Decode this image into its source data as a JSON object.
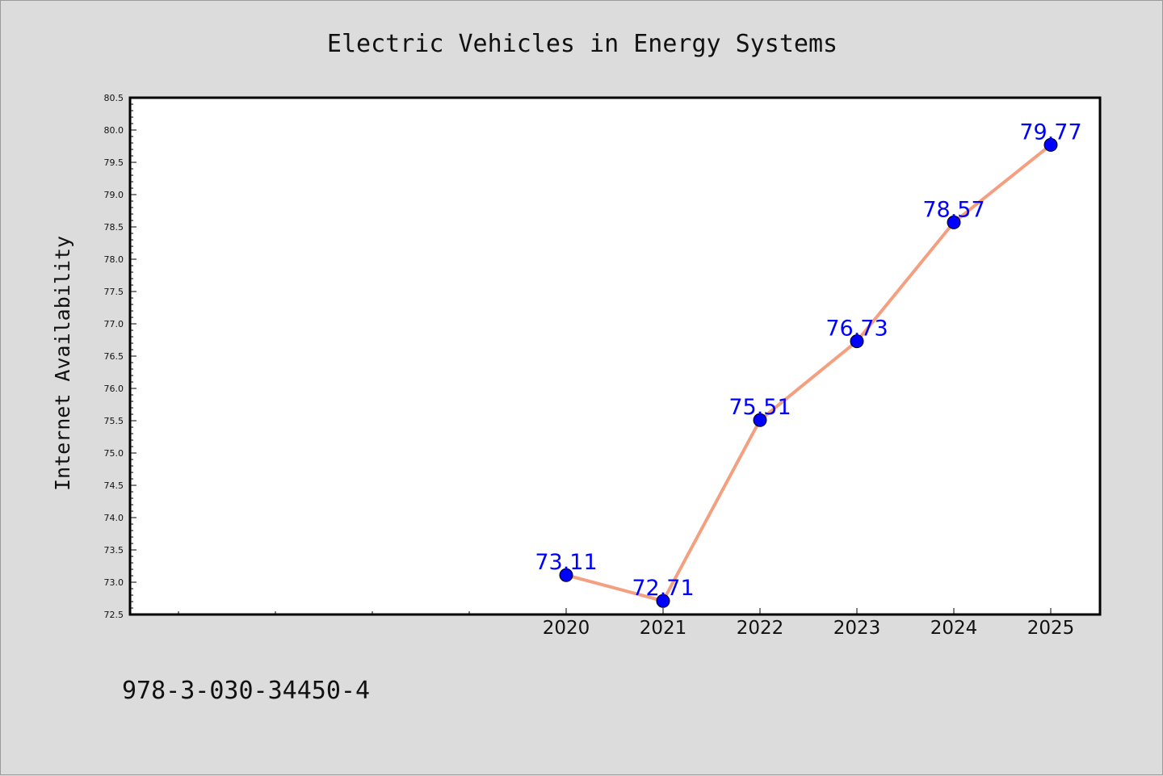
{
  "colors": {
    "background": "#dcdcdc",
    "plot_background": "#ffffff",
    "line": "#f4a080",
    "marker": "#0000ff",
    "label": "#0000ff"
  },
  "footer": {
    "isbn": "978-3-030-34450-4"
  },
  "chart_data": {
    "type": "line",
    "title": "Electric Vehicles in Energy Systems",
    "xlabel": "",
    "ylabel": "Internet Availability",
    "x": [
      "2020",
      "2021",
      "2022",
      "2023",
      "2024",
      "2025"
    ],
    "series": [
      {
        "values": [
          73.11,
          72.71,
          75.51,
          76.73,
          78.57,
          79.77
        ]
      }
    ],
    "data_labels": [
      "73.11",
      "72.71",
      "75.51",
      "76.73",
      "78.57",
      "79.77"
    ],
    "ylim": [
      72.5,
      80.5
    ],
    "yticks": [
      "72.5",
      "73.0",
      "73.5",
      "74.0",
      "74.5",
      "75.0",
      "75.5",
      "76.0",
      "76.5",
      "77.0",
      "77.5",
      "78.0",
      "78.5",
      "79.0",
      "79.5",
      "80.0",
      "80.5"
    ],
    "grid": false,
    "legend": "none"
  }
}
